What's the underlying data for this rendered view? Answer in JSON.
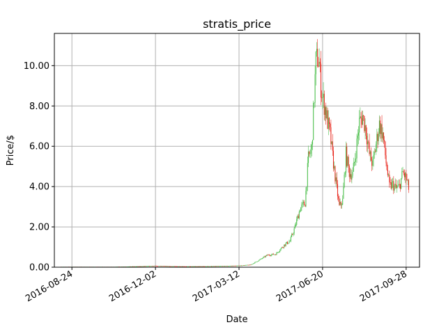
{
  "chart_data": {
    "type": "candlestick",
    "title": "stratis_price",
    "xlabel": "Date",
    "ylabel": "Price/$",
    "x_ticks": [
      "2016-08-24",
      "2016-12-02",
      "2017-03-12",
      "2017-06-20",
      "2017-09-28"
    ],
    "y_ticks": [
      "0.00",
      "2.00",
      "4.00",
      "6.00",
      "8.00",
      "10.00"
    ],
    "xlim": [
      "2016-08-03",
      "2017-10-14"
    ],
    "ylim": [
      0,
      11.6
    ],
    "grid": true,
    "colors": {
      "up": "#4dbf4d",
      "down": "#e8281e",
      "grid": "#b0b0b0"
    },
    "series": [
      {
        "date": [
          "2016-08-11",
          "2016-09-10",
          "2016-10-10",
          "2016-11-09",
          "2016-12-02",
          "2016-12-20",
          "2017-01-09",
          "2017-02-08",
          "2017-03-12",
          "2017-03-26",
          "2017-04-05",
          "2017-04-15",
          "2017-04-25",
          "2017-05-05",
          "2017-05-12",
          "2017-05-18",
          "2017-05-24",
          "2017-05-30",
          "2017-06-03",
          "2017-06-07",
          "2017-06-10",
          "2017-06-12",
          "2017-06-14",
          "2017-06-16",
          "2017-06-18",
          "2017-06-20",
          "2017-06-23",
          "2017-06-26",
          "2017-06-29",
          "2017-07-02",
          "2017-07-06",
          "2017-07-10",
          "2017-07-14",
          "2017-07-18",
          "2017-07-22",
          "2017-07-26",
          "2017-07-30",
          "2017-08-03",
          "2017-08-07",
          "2017-08-11",
          "2017-08-15",
          "2017-08-19",
          "2017-08-23",
          "2017-08-27",
          "2017-08-31",
          "2017-09-04",
          "2017-09-08",
          "2017-09-12",
          "2017-09-16",
          "2017-09-20",
          "2017-09-24",
          "2017-09-28",
          "2017-10-01"
        ],
        "price": [
          0.02,
          0.02,
          0.02,
          0.04,
          0.07,
          0.05,
          0.04,
          0.05,
          0.08,
          0.12,
          0.35,
          0.6,
          0.65,
          1.1,
          1.3,
          2.0,
          2.9,
          3.2,
          5.4,
          5.9,
          8.5,
          10.2,
          10.4,
          10.1,
          9.0,
          8.4,
          7.9,
          7.2,
          6.6,
          5.5,
          4.2,
          3.0,
          3.3,
          5.6,
          4.7,
          4.6,
          5.8,
          7.2,
          7.5,
          6.8,
          5.6,
          5.1,
          6.1,
          7.1,
          6.6,
          5.2,
          4.0,
          4.1,
          3.9,
          4.0,
          4.7,
          4.4,
          3.9
        ]
      }
    ]
  }
}
